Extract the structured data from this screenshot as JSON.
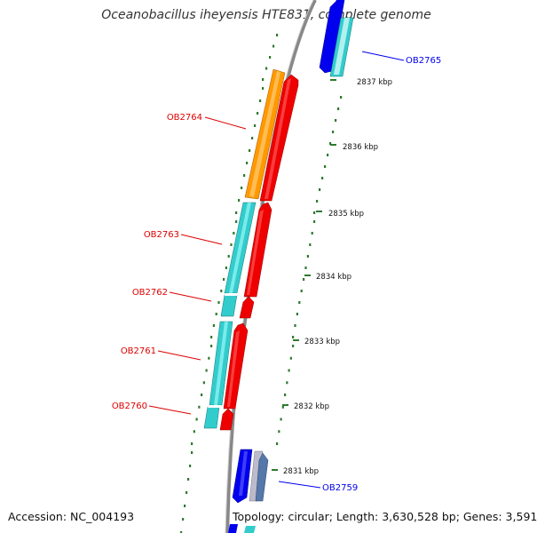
{
  "title": "Oceanobacillus iheyensis HTE831, complete genome",
  "footer": {
    "accession": "Accession: NC_004193",
    "topology": "Topology: circular; Length: 3,630,528 bp; Genes: 3,591"
  },
  "colors": {
    "backbone": "#888888",
    "tick": "#2f7a2f",
    "forward_label": "#0000ee",
    "reverse_label": "#dd0000",
    "red": "#ee0000",
    "cyan": "#33cccc",
    "orange": "#ff9900",
    "blue": "#0000ee",
    "steel": "#5577aa"
  },
  "scale": {
    "unit": "kbp",
    "ticks": [
      {
        "kbp": 2831,
        "label": "2831 kbp"
      },
      {
        "kbp": 2832,
        "label": "2832 kbp"
      },
      {
        "kbp": 2833,
        "label": "2833 kbp"
      },
      {
        "kbp": 2834,
        "label": "2834 kbp"
      },
      {
        "kbp": 2835,
        "label": "2835 kbp"
      },
      {
        "kbp": 2836,
        "label": "2836 kbp"
      },
      {
        "kbp": 2837,
        "label": "2837 kbp"
      }
    ]
  },
  "gene_labels": [
    {
      "id": "OB2765",
      "strand": "forward"
    },
    {
      "id": "OB2764",
      "strand": "reverse"
    },
    {
      "id": "OB2763",
      "strand": "reverse"
    },
    {
      "id": "OB2762",
      "strand": "reverse"
    },
    {
      "id": "OB2761",
      "strand": "reverse"
    },
    {
      "id": "OB2760",
      "strand": "reverse"
    },
    {
      "id": "OB2759",
      "strand": "forward"
    }
  ]
}
